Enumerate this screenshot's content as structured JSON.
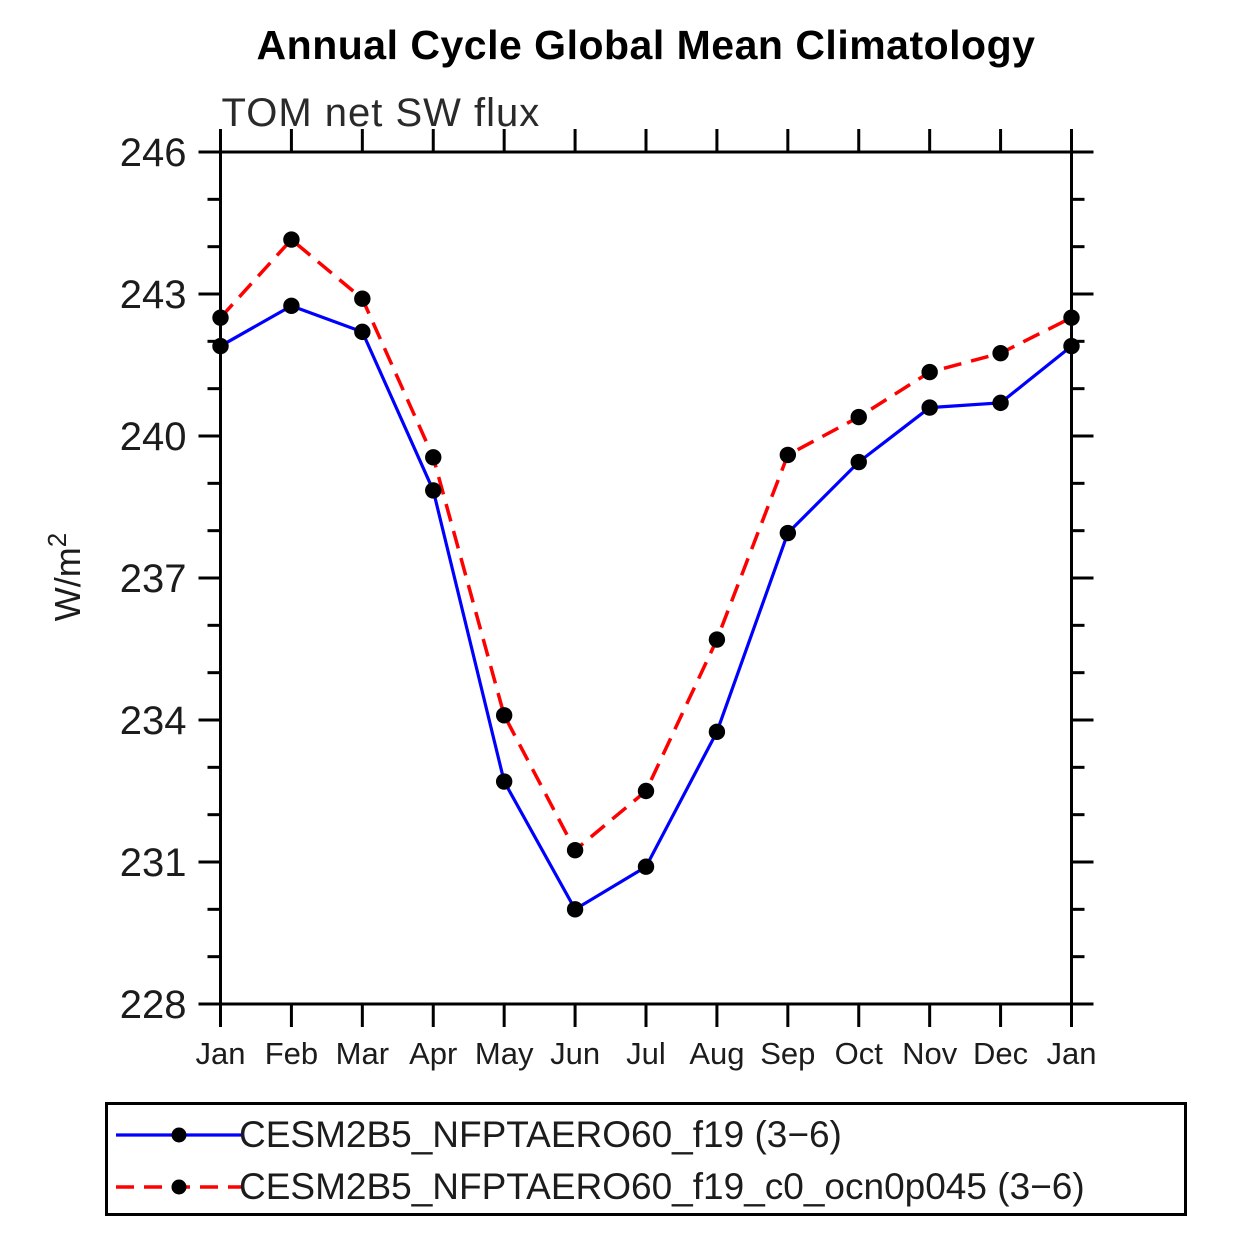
{
  "title": "Annual Cycle Global Mean Climatology",
  "chart_data": {
    "type": "line",
    "title": "Annual Cycle Global Mean Climatology",
    "subtitle": "TOM net SW flux",
    "ylabel": "W/m2",
    "ylabel_base": "W/m",
    "ylabel_exp": "2",
    "xlabel": "",
    "categories": [
      "Jan",
      "Feb",
      "Mar",
      "Apr",
      "May",
      "Jun",
      "Jul",
      "Aug",
      "Sep",
      "Oct",
      "Nov",
      "Dec",
      "Jan"
    ],
    "ylim": [
      228,
      246
    ],
    "y_major_ticks": [
      246,
      243,
      240,
      237,
      234,
      231,
      228
    ],
    "y_minor_step": 1,
    "grid": "off",
    "legend_position": "bottom",
    "series": [
      {
        "name": "CESM2B5_NFPTAERO60_f19 (3−6)",
        "color": "#0000ff",
        "line_style": "solid",
        "marker": "filled-black-circle",
        "values": [
          241.9,
          242.75,
          242.2,
          238.85,
          232.7,
          230.0,
          230.9,
          233.75,
          237.95,
          239.45,
          240.6,
          240.7,
          241.9
        ]
      },
      {
        "name": "CESM2B5_NFPTAERO60_f19_c0_ocn0p045 (3−6)",
        "color": "#ff0000",
        "line_style": "dashed",
        "marker": "filled-black-circle",
        "values": [
          242.5,
          244.15,
          242.9,
          239.55,
          234.1,
          231.25,
          232.5,
          235.7,
          239.6,
          240.4,
          241.35,
          241.75,
          242.5
        ]
      }
    ]
  },
  "colors": {
    "axis": "#000000",
    "tick_text": "#1c1c1c",
    "subtitle_text": "#2a2a2a",
    "marker": "#000000",
    "background": "#ffffff"
  }
}
